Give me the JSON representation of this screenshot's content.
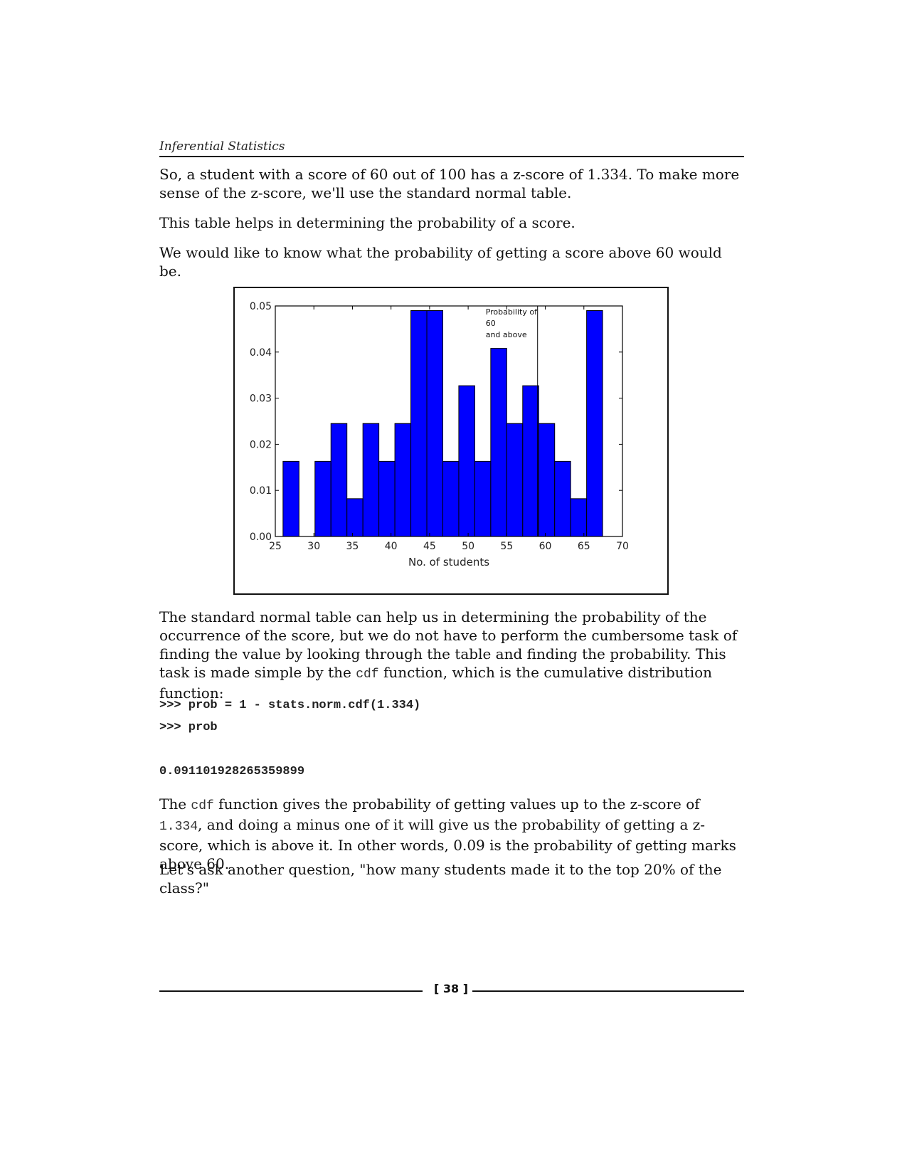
{
  "header": {
    "running_title": "Inferential Statistics"
  },
  "paragraphs": {
    "p1": "So, a student with a score of 60 out of 100 has a z-score of 1.334. To make more sense of the z-score, we'll use the standard normal table.",
    "p2": "This table helps in determining the probability of a score.",
    "p3": "We would like to know what the probability of getting a score above 60 would be.",
    "p4_a": "The standard normal table can help us in determining the probability of the occurrence of the score, but we do not have to perform the cumbersome task of finding the value by looking through the table and finding the probability. This task is made simple by the ",
    "p4_code": "cdf",
    "p4_b": " function, which is the cumulative distribution function:",
    "p5_a": "The ",
    "p5_code1": "cdf",
    "p5_b": " function gives the probability of getting values up to the z-score of ",
    "p5_code2": "1.334",
    "p5_c": ", and doing a minus one of it will give us the probability of getting a z-score, which is above it. In other words, 0.09 is the probability of getting marks above 60.",
    "p6": "Let's ask another question, \"how many students made it to the top 20%  of the class?\""
  },
  "code": {
    "line1": ">>> prob = 1 - stats.norm.cdf(1.334)",
    "line2": ">>> prob",
    "output": "0.091101928265359899"
  },
  "chart_data": {
    "type": "bar",
    "xlabel": "No. of students",
    "ylabel": "",
    "xlim": [
      25,
      70
    ],
    "ylim": [
      0,
      0.05
    ],
    "xticks": [
      "25",
      "30",
      "35",
      "40",
      "45",
      "50",
      "55",
      "60",
      "65",
      "70"
    ],
    "yticks": [
      "0.00",
      "0.01",
      "0.02",
      "0.03",
      "0.04",
      "0.05"
    ],
    "bin_start": 26,
    "bin_width": 2.0714,
    "values": [
      0.0163,
      0,
      0.0163,
      0.0245,
      0.0082,
      0.0245,
      0.0163,
      0.0245,
      0.049,
      0.049,
      0.0163,
      0.0327,
      0.0163,
      0.0408,
      0.0245,
      0.0327,
      0.0245,
      0.0163,
      0.0082,
      0.049
    ],
    "bar_color": "#0000ff",
    "marker_x": 59,
    "annotation": [
      "Probability of",
      "60",
      "and above"
    ],
    "grid": false
  },
  "footer": {
    "page_number": "[ 38 ]"
  }
}
